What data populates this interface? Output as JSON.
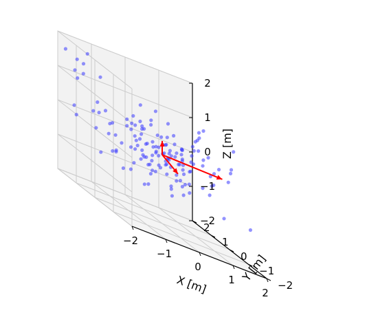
{
  "chart_data": {
    "type": "scatter",
    "title": "",
    "xlabel": "X [m]",
    "ylabel": "Y [m]",
    "zlabel": "Z [m]",
    "xlim": [
      -2,
      2
    ],
    "ylim": [
      -2,
      2
    ],
    "zlim": [
      -2,
      2
    ],
    "x_ticks": [
      "−2",
      "−1",
      "0",
      "1",
      "2"
    ],
    "y_ticks": [
      "−2",
      "−1",
      "0",
      "1",
      "2"
    ],
    "z_ticks": [
      "−2",
      "−1",
      "0",
      "1",
      "2"
    ],
    "grid": true,
    "projection": "3d",
    "point_color": "#3b3bff",
    "arrow_color": "#ff0000",
    "pane_color": "#f2f2f2",
    "grid_color": "#cccccc",
    "points": [
      [
        0.02,
        0.01,
        0.03
      ],
      [
        0.15,
        -0.1,
        -0.05
      ],
      [
        -0.2,
        0.12,
        0.1
      ],
      [
        0.3,
        0.25,
        -0.12
      ],
      [
        -0.35,
        -0.3,
        0.05
      ],
      [
        0.4,
        -0.05,
        0.22
      ],
      [
        -0.1,
        0.35,
        -0.2
      ],
      [
        0.22,
        0.18,
        0.3
      ],
      [
        -0.28,
        0.05,
        -0.3
      ],
      [
        0.05,
        -0.4,
        0.15
      ],
      [
        0.55,
        0.3,
        0.02
      ],
      [
        -0.5,
        -0.1,
        0.18
      ],
      [
        0.12,
        0.55,
        0.05
      ],
      [
        -0.05,
        -0.55,
        -0.15
      ],
      [
        0.45,
        -0.35,
        -0.25
      ],
      [
        -0.4,
        0.4,
        0.28
      ],
      [
        0.65,
        0.05,
        -0.08
      ],
      [
        -0.62,
        0.2,
        -0.05
      ],
      [
        0.1,
        0.7,
        0.12
      ],
      [
        -0.15,
        -0.65,
        0.25
      ],
      [
        0.35,
        0.45,
        -0.35
      ],
      [
        -0.3,
        -0.45,
        -0.3
      ],
      [
        0.75,
        -0.2,
        0.15
      ],
      [
        -0.7,
        -0.3,
        -0.2
      ],
      [
        0.2,
        -0.75,
        -0.05
      ],
      [
        -0.25,
        0.75,
        0.05
      ],
      [
        0.8,
        0.4,
        0.3
      ],
      [
        -0.8,
        0.45,
        0.35
      ],
      [
        0.5,
        0.8,
        -0.1
      ],
      [
        -0.55,
        -0.8,
        0.1
      ],
      [
        0.9,
        -0.55,
        -0.4
      ],
      [
        -0.95,
        -0.05,
        0.4
      ],
      [
        0.05,
        0.95,
        -0.45
      ],
      [
        -0.1,
        -0.95,
        -0.4
      ],
      [
        1.0,
        0.1,
        0.45
      ],
      [
        -1.0,
        0.7,
        -0.1
      ],
      [
        0.7,
        1.0,
        0.35
      ],
      [
        -0.75,
        -1.0,
        -0.35
      ],
      [
        1.1,
        -0.8,
        0.2
      ],
      [
        -1.1,
        -0.6,
        0.25
      ],
      [
        0.3,
        1.15,
        0.5
      ],
      [
        -0.4,
        -1.15,
        0.45
      ],
      [
        1.2,
        0.65,
        -0.3
      ],
      [
        -1.2,
        0.3,
        -0.45
      ],
      [
        0.15,
        -1.2,
        -0.55
      ],
      [
        -0.2,
        1.2,
        0.55
      ],
      [
        1.3,
        -0.2,
        -0.6
      ],
      [
        -1.3,
        -0.9,
        0.05
      ],
      [
        0.85,
        1.3,
        -0.5
      ],
      [
        -0.9,
        1.25,
        -0.25
      ],
      [
        1.4,
        0.95,
        0.1
      ],
      [
        -1.4,
        0.95,
        0.6
      ],
      [
        0.45,
        -1.4,
        0.6
      ],
      [
        -0.5,
        -1.4,
        -0.6
      ],
      [
        1.5,
        -1.0,
        0.55
      ],
      [
        -1.5,
        -1.2,
        -0.3
      ],
      [
        1.0,
        1.5,
        0.65
      ],
      [
        -1.05,
        1.5,
        0.2
      ],
      [
        0.6,
        0.0,
        -0.7
      ],
      [
        -0.6,
        0.1,
        0.7
      ],
      [
        0.0,
        0.6,
        0.75
      ],
      [
        0.1,
        -0.3,
        -0.75
      ],
      [
        1.6,
        0.3,
        -0.15
      ],
      [
        -1.6,
        0.4,
        -0.7
      ],
      [
        0.25,
        1.6,
        -0.7
      ],
      [
        -0.3,
        -1.6,
        0.7
      ],
      [
        1.7,
        -0.6,
        0.35
      ],
      [
        -1.7,
        -0.4,
        0.45
      ],
      [
        1.2,
        1.2,
        -0.8
      ],
      [
        -1.2,
        -1.2,
        0.8
      ],
      [
        1.75,
        1.2,
        0.8
      ],
      [
        -1.8,
        1.3,
        1.0
      ],
      [
        -1.6,
        1.8,
        1.1
      ],
      [
        -1.9,
        0.8,
        1.3
      ],
      [
        -1.7,
        1.5,
        1.5
      ],
      [
        -1.85,
        1.85,
        1.6
      ],
      [
        -1.4,
        1.7,
        1.4
      ],
      [
        -1.2,
        1.85,
        1.7
      ],
      [
        -0.9,
        1.7,
        1.2
      ],
      [
        -1.95,
        1.2,
        0.2
      ],
      [
        -1.5,
        1.9,
        -0.2
      ],
      [
        -1.0,
        1.9,
        0.1
      ],
      [
        0.4,
        1.9,
        0.8
      ],
      [
        1.9,
        1.5,
        0.2
      ],
      [
        1.85,
        -1.4,
        -0.9
      ],
      [
        1.7,
        1.85,
        -1.0
      ],
      [
        0.9,
        -1.7,
        -0.8
      ],
      [
        -0.5,
        -1.85,
        0.3
      ],
      [
        1.95,
        -0.3,
        0.95
      ],
      [
        1.5,
        0.5,
        1.05
      ],
      [
        0.8,
        0.3,
        -1.0
      ],
      [
        -0.8,
        -0.5,
        -0.95
      ],
      [
        0.3,
        0.9,
        1.0
      ],
      [
        -0.3,
        0.2,
        -1.05
      ],
      [
        1.1,
        0.0,
        0.9
      ],
      [
        -1.1,
        0.1,
        -0.85
      ],
      [
        0.6,
        -0.7,
        0.9
      ],
      [
        -0.6,
        0.6,
        -0.9
      ],
      [
        1.35,
        0.55,
        0.7
      ],
      [
        -1.35,
        -0.55,
        0.75
      ],
      [
        0.45,
        1.35,
        -0.85
      ],
      [
        -0.45,
        -1.35,
        -0.8
      ],
      [
        0.95,
        -0.95,
        -0.15
      ],
      [
        -0.95,
        0.95,
        -0.65
      ],
      [
        0.18,
        0.38,
        0.42
      ],
      [
        -0.18,
        -0.38,
        0.38
      ],
      [
        0.48,
        0.1,
        -0.45
      ],
      [
        -0.48,
        -0.12,
        -0.42
      ],
      [
        0.28,
        -0.58,
        0.48
      ],
      [
        -0.28,
        0.58,
        0.4
      ],
      [
        0.68,
        0.62,
        0.55
      ],
      [
        -0.68,
        -0.62,
        -0.55
      ],
      [
        0.85,
        -0.1,
        0.6
      ],
      [
        -0.85,
        0.1,
        0.55
      ],
      [
        0.1,
        0.85,
        -0.6
      ],
      [
        -0.1,
        -0.85,
        0.62
      ],
      [
        1.05,
        0.45,
        -0.65
      ],
      [
        -1.05,
        -0.45,
        0.65
      ],
      [
        0.35,
        -1.05,
        0.3
      ],
      [
        -0.35,
        1.05,
        -0.35
      ],
      [
        1.25,
        -0.5,
        -0.2
      ],
      [
        -1.25,
        0.55,
        0.2
      ],
      [
        0.55,
        1.25,
        0.25
      ],
      [
        -0.55,
        -1.25,
        -0.25
      ],
      [
        1.45,
        0.15,
        0.4
      ],
      [
        -1.45,
        -0.15,
        -0.4
      ],
      [
        0.2,
        1.45,
        0.3
      ],
      [
        -0.2,
        -1.45,
        0.35
      ],
      [
        1.15,
        1.05,
        0.0
      ],
      [
        -1.15,
        -1.05,
        0.0
      ],
      [
        1.05,
        -1.15,
        0.45
      ],
      [
        -1.05,
        1.15,
        0.4
      ],
      [
        0.72,
        0.22,
        0.05
      ],
      [
        -0.72,
        -0.22,
        -0.05
      ],
      [
        0.22,
        0.72,
        -0.12
      ],
      [
        -0.22,
        -0.72,
        0.12
      ],
      [
        0.58,
        -0.42,
        -0.1
      ],
      [
        -0.58,
        0.42,
        0.15
      ],
      [
        0.42,
        0.58,
        0.2
      ],
      [
        -0.42,
        -0.58,
        -0.22
      ],
      [
        0.88,
        0.72,
        -0.25
      ],
      [
        -0.88,
        -0.72,
        0.28
      ],
      [
        0.72,
        -0.88,
        0.32
      ],
      [
        -0.72,
        0.88,
        -0.3
      ],
      [
        1.55,
        -0.75,
        0.1
      ],
      [
        -1.55,
        0.75,
        -0.12
      ],
      [
        0.75,
        1.55,
        -0.15
      ],
      [
        -0.75,
        -1.55,
        0.18
      ]
    ],
    "arrows": [
      {
        "from": [
          0,
          0,
          0
        ],
        "to": [
          1.95,
          0.3,
          -0.1
        ]
      },
      {
        "from": [
          0,
          0,
          0
        ],
        "to": [
          0.0,
          -0.85,
          -0.2
        ]
      },
      {
        "from": [
          0,
          0,
          0
        ],
        "to": [
          0.0,
          0.0,
          0.4
        ]
      }
    ]
  }
}
